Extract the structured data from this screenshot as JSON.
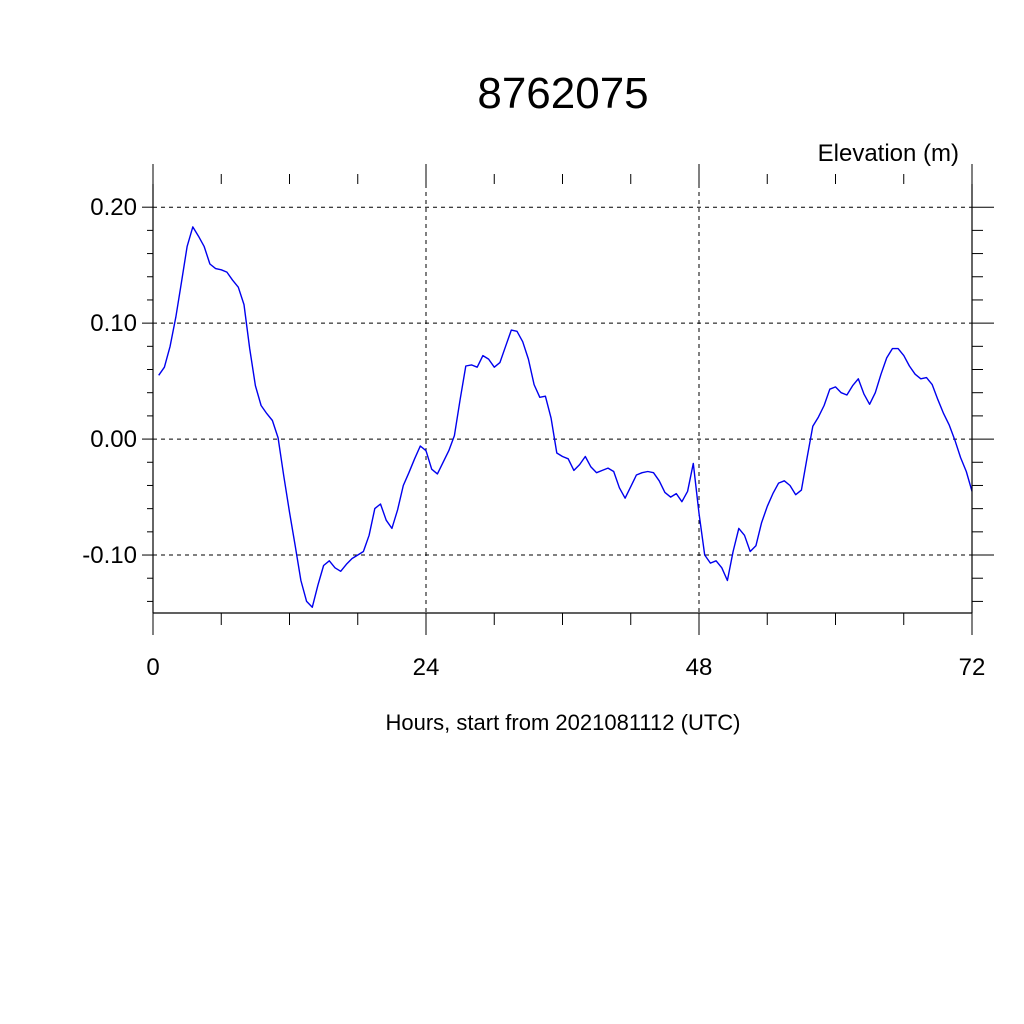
{
  "chart_data": {
    "type": "line",
    "title": "8762075",
    "ylabel": "Elevation (m)",
    "xlabel": "Hours, start from 2021081112 (UTC)",
    "xlim": [
      0,
      72
    ],
    "ylim": [
      -0.15,
      0.22
    ],
    "x_ticks": [
      0,
      24,
      48,
      72
    ],
    "x_tick_labels": [
      "0",
      "24",
      "48",
      "72"
    ],
    "y_ticks": [
      -0.1,
      0.0,
      0.1,
      0.2
    ],
    "y_tick_labels": [
      "-0.10",
      "0.00",
      "0.10",
      "0.20"
    ],
    "grid": true,
    "legend": "none",
    "series": [
      {
        "color": "#0000ee",
        "x": [
          0.5,
          1,
          1.5,
          2,
          2.5,
          3,
          3.5,
          4,
          4.5,
          5,
          5.5,
          6,
          6.5,
          7,
          7.5,
          8,
          8.5,
          9,
          9.5,
          10,
          10.5,
          11,
          11.5,
          12,
          12.5,
          13,
          13.5,
          14,
          14.5,
          15,
          15.5,
          16,
          16.5,
          17,
          17.5,
          18,
          18.5,
          19,
          19.5,
          20,
          20.5,
          21,
          21.5,
          22,
          22.5,
          23,
          23.5,
          24,
          24.5,
          25,
          25.5,
          26,
          26.5,
          27,
          27.5,
          28,
          28.5,
          29,
          29.5,
          30,
          30.5,
          31,
          31.5,
          32,
          32.5,
          33,
          33.5,
          34,
          34.5,
          35,
          35.5,
          36,
          36.5,
          37,
          37.5,
          38,
          38.5,
          39,
          39.5,
          40,
          40.5,
          41,
          41.5,
          42,
          42.5,
          43,
          43.5,
          44,
          44.5,
          45,
          45.5,
          46,
          46.5,
          47,
          47.5,
          48,
          48.5,
          49,
          49.5,
          50,
          50.5,
          51,
          51.5,
          52,
          52.5,
          53,
          53.5,
          54,
          54.5,
          55,
          55.5,
          56,
          56.5,
          57,
          57.5,
          58,
          58.5,
          59,
          59.5,
          60,
          60.5,
          61,
          61.5,
          62,
          62.5,
          63,
          63.5,
          64,
          64.5,
          65,
          65.5,
          66,
          66.5,
          67,
          67.5,
          68,
          68.5,
          69,
          69.5,
          70,
          70.5,
          71,
          71.5,
          72
        ],
        "y": [
          0.055,
          0.062,
          0.08,
          0.105,
          0.135,
          0.166,
          0.183,
          0.175,
          0.166,
          0.151,
          0.147,
          0.146,
          0.144,
          0.137,
          0.131,
          0.116,
          0.078,
          0.046,
          0.029,
          0.022,
          0.016,
          0.001,
          -0.032,
          -0.063,
          -0.092,
          -0.122,
          -0.14,
          -0.145,
          -0.126,
          -0.109,
          -0.105,
          -0.111,
          -0.114,
          -0.108,
          -0.103,
          -0.1,
          -0.097,
          -0.083,
          -0.06,
          -0.056,
          -0.07,
          -0.077,
          -0.061,
          -0.04,
          -0.029,
          -0.017,
          -0.006,
          -0.01,
          -0.026,
          -0.03,
          -0.02,
          -0.01,
          0.003,
          0.034,
          0.063,
          0.064,
          0.062,
          0.072,
          0.069,
          0.062,
          0.066,
          0.08,
          0.094,
          0.093,
          0.084,
          0.069,
          0.047,
          0.036,
          0.037,
          0.018,
          -0.012,
          -0.015,
          -0.017,
          -0.027,
          -0.022,
          -0.015,
          -0.024,
          -0.029,
          -0.027,
          -0.025,
          -0.028,
          -0.042,
          -0.051,
          -0.041,
          -0.031,
          -0.029,
          -0.028,
          -0.029,
          -0.036,
          -0.046,
          -0.05,
          -0.047,
          -0.054,
          -0.045,
          -0.021,
          -0.064,
          -0.1,
          -0.107,
          -0.105,
          -0.111,
          -0.122,
          -0.097,
          -0.077,
          -0.083,
          -0.097,
          -0.092,
          -0.072,
          -0.058,
          -0.047,
          -0.038,
          -0.036,
          -0.04,
          -0.048,
          -0.044,
          -0.016,
          0.011,
          0.019,
          0.029,
          0.043,
          0.045,
          0.04,
          0.038,
          0.046,
          0.052,
          0.039,
          0.03,
          0.04,
          0.056,
          0.07,
          0.078,
          0.078,
          0.072,
          0.063,
          0.056,
          0.052,
          0.053,
          0.047,
          0.034,
          0.022,
          0.012,
          -0.001,
          -0.016,
          -0.028,
          -0.045
        ]
      }
    ]
  }
}
